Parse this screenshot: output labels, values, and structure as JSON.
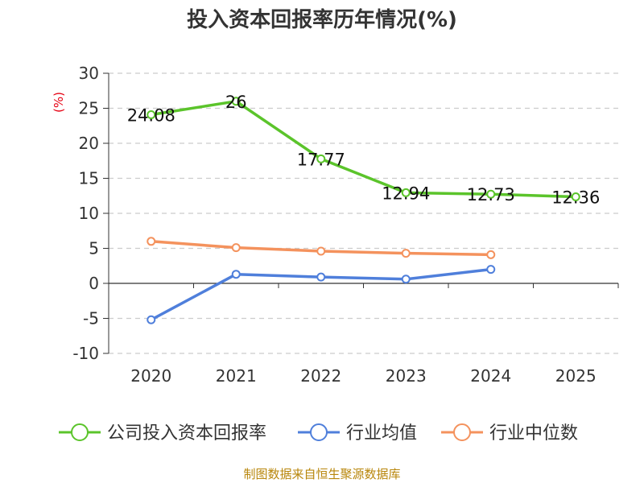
{
  "chart_data": {
    "type": "line",
    "title": "投入资本回报率历年情况(%)",
    "ylabel": "(%)",
    "categories": [
      "2020",
      "2021",
      "2022",
      "2023",
      "2024",
      "2025"
    ],
    "ylim": [
      -10,
      30
    ],
    "yticks": [
      30,
      25,
      20,
      15,
      10,
      5,
      0,
      -5,
      -10
    ],
    "grid": true,
    "legend_position": "bottom",
    "series": [
      {
        "name": "公司投入资本回报率",
        "color": "#5bc42b",
        "values": [
          24.08,
          26,
          17.77,
          12.94,
          12.73,
          12.36
        ],
        "labels": [
          "24.08",
          "26",
          "17.77",
          "12.94",
          "12.73",
          "12.36"
        ],
        "show_labels": true
      },
      {
        "name": "行业均值",
        "color": "#4f7fdb",
        "values": [
          -5.2,
          1.3,
          0.9,
          0.6,
          2.0,
          null
        ],
        "show_labels": false
      },
      {
        "name": "行业中位数",
        "color": "#f4925d",
        "values": [
          6.0,
          5.1,
          4.6,
          4.3,
          4.1,
          null
        ],
        "show_labels": false
      }
    ],
    "source": "制图数据来自恒生聚源数据库"
  }
}
